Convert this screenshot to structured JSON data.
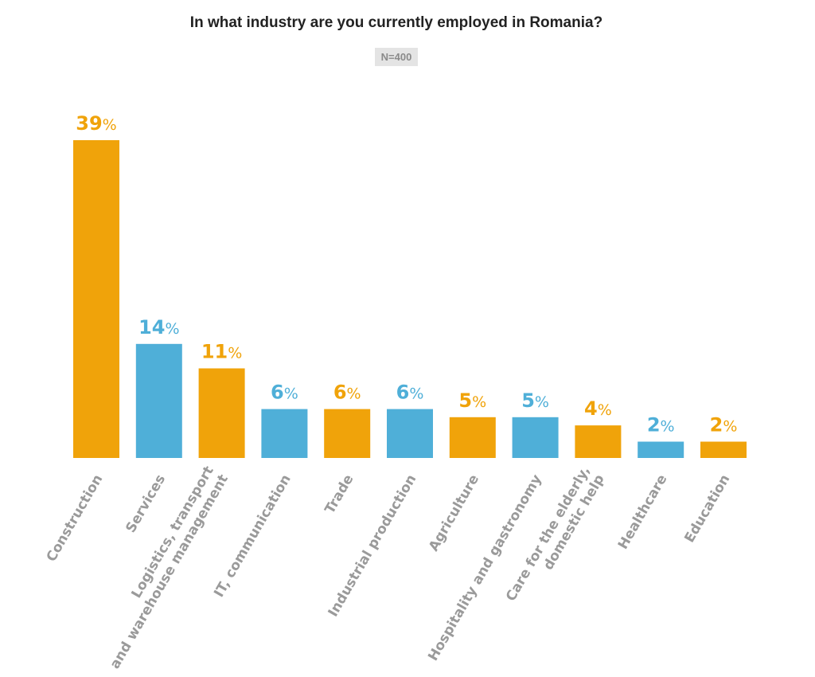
{
  "chart_data": {
    "type": "bar",
    "title": "In what industry are you currently employed in Romania?",
    "subtitle": "N=400",
    "unit": "%",
    "categories": [
      [
        "Construction"
      ],
      [
        "Services"
      ],
      [
        "Logistics, transport",
        "and warehouse management"
      ],
      [
        "IT, communication"
      ],
      [
        "Trade"
      ],
      [
        "Industrial production"
      ],
      [
        "Agriculture"
      ],
      [
        "Hospitality and gastronomy"
      ],
      [
        "Care for the elderly,",
        "domestic help"
      ],
      [
        "Healthcare"
      ],
      [
        "Education"
      ]
    ],
    "values": [
      39,
      14,
      11,
      6,
      6,
      6,
      5,
      5,
      4,
      2,
      2
    ],
    "colors": [
      "#f0a30a",
      "#4fafd8"
    ],
    "ylim": [
      0,
      39
    ],
    "grid": false,
    "legend": false
  }
}
